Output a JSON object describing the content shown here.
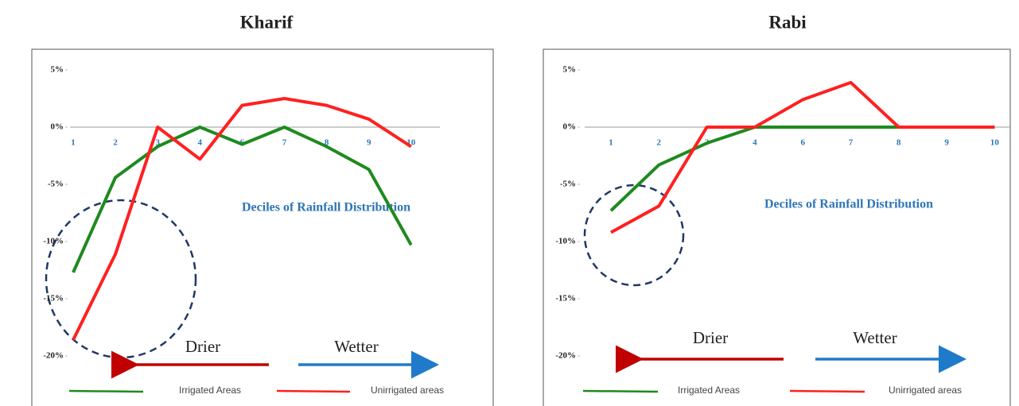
{
  "chart_data": [
    {
      "type": "line",
      "title": "Kharif",
      "x_label": "Deciles of Rainfall Distribution",
      "annotations": [
        "Drier",
        "Wetter"
      ],
      "categories": [
        "1",
        "2",
        "3",
        "4",
        "6",
        "7",
        "8",
        "9",
        "10"
      ],
      "series": [
        {
          "name": "Irrigated Areas",
          "color": "#1e8a1e",
          "values": [
            -12.7,
            -4.4,
            -1.7,
            0,
            -1.5,
            0,
            -1.7,
            -3.7,
            -10.3
          ]
        },
        {
          "name": "Unirrigated areas",
          "color": "#ff2020",
          "values": [
            -18.6,
            -11.1,
            0,
            -2.8,
            1.9,
            2.5,
            1.9,
            0.7,
            -1.7
          ]
        }
      ],
      "ylim": [
        -20,
        5
      ],
      "yticks": [
        {
          "value": 5,
          "label": "5%"
        },
        {
          "value": 0,
          "label": "0%"
        },
        {
          "value": -5,
          "label": "-5%"
        },
        {
          "value": -10,
          "label": "-10%"
        },
        {
          "value": -15,
          "label": "-15%"
        },
        {
          "value": -20,
          "label": "-20%"
        }
      ],
      "grid": false
    },
    {
      "type": "line",
      "title": "Rabi",
      "x_label": "Deciles of Rainfall Distribution",
      "annotations": [
        "Drier",
        "Wetter"
      ],
      "categories": [
        "1",
        "2",
        "3",
        "4",
        "6",
        "7",
        "8",
        "9",
        "10"
      ],
      "series": [
        {
          "name": "Irrigated Areas",
          "color": "#1e8a1e",
          "values": [
            -7.3,
            -3.3,
            -1.4,
            0,
            0,
            0,
            0,
            0,
            0
          ]
        },
        {
          "name": "Unirrigated areas",
          "color": "#ff2020",
          "values": [
            -9.2,
            -6.9,
            0,
            0,
            2.4,
            3.9,
            0,
            0,
            0
          ]
        }
      ],
      "ylim": [
        -20,
        5
      ],
      "yticks": [
        {
          "value": 5,
          "label": "5%"
        },
        {
          "value": 0,
          "label": "0%"
        },
        {
          "value": -5,
          "label": "-5%"
        },
        {
          "value": -10,
          "label": "-10%"
        },
        {
          "value": -15,
          "label": "-15%"
        },
        {
          "value": -20,
          "label": "-20%"
        }
      ],
      "grid": false
    }
  ]
}
